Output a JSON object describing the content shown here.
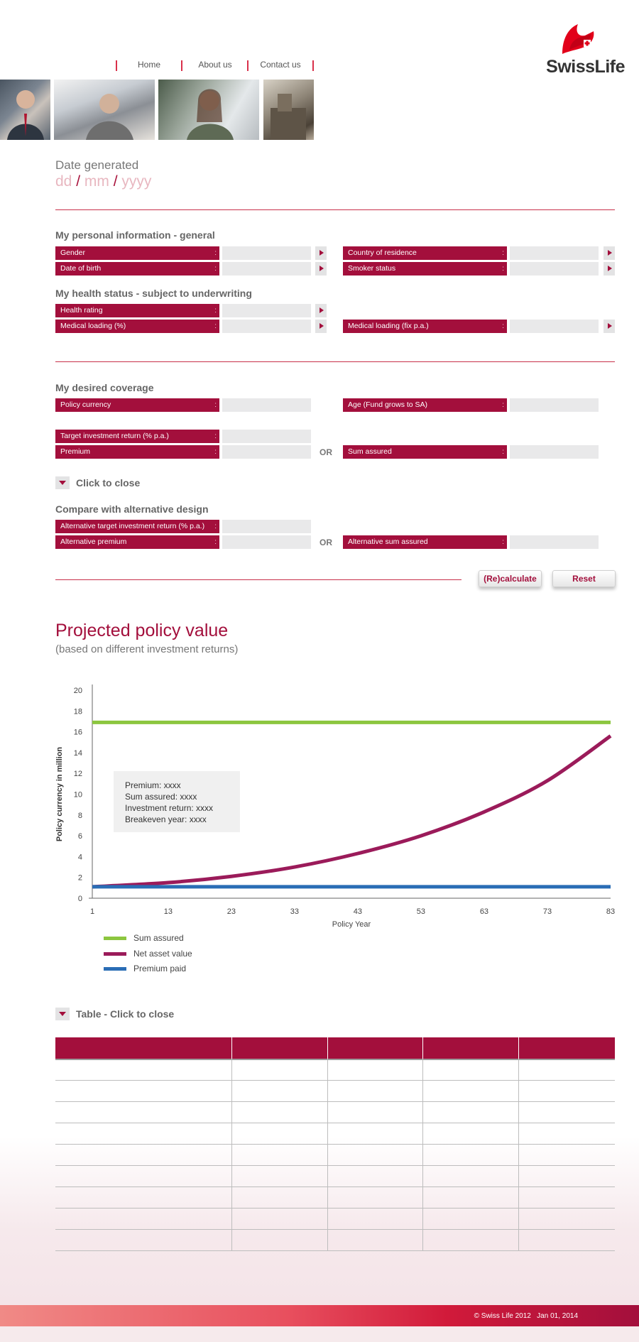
{
  "nav": {
    "items": [
      "Home",
      "About us",
      "Contact us"
    ]
  },
  "brand": {
    "name": "SwissLife",
    "accent_color": "#a30f3c",
    "logo_icon": "swisslife-flag-icon"
  },
  "date_generated": {
    "label": "Date generated",
    "dd": "dd",
    "mm": "mm",
    "yyyy": "yyyy",
    "sep": "/"
  },
  "personal_info": {
    "title": "My personal information - general",
    "gender": "Gender",
    "country": "Country of residence",
    "dob": "Date of birth",
    "smoker": "Smoker status"
  },
  "health": {
    "title": "My health status - subject to underwriting",
    "rating": "Health rating",
    "loading_pct": "Medical loading (%)",
    "loading_fix": "Medical loading (fix p.a.)"
  },
  "coverage": {
    "title": "My desired coverage",
    "currency": "Policy currency",
    "age": "Age (Fund grows to SA)",
    "target_return": "Target investment return (% p.a.)",
    "premium": "Premium",
    "or": "OR",
    "sum_assured": "Sum assured",
    "toggle_label": "Click to close"
  },
  "alternative": {
    "title": "Compare with alternative design",
    "target_return": "Alternative target investment return (% p.a.)",
    "premium": "Alternative premium",
    "or": "OR",
    "sum_assured": "Alternative sum assured"
  },
  "actions": {
    "recalculate": "(Re)calculate",
    "reset": "Reset"
  },
  "projection": {
    "title": "Projected policy value",
    "subtitle": "(based on different investment returns)",
    "info": {
      "premium": "Premium: xxxx",
      "sum_assured": "Sum assured: xxxx",
      "investment_return": "Investment return: xxxx",
      "breakeven": "Breakeven year: xxxx"
    }
  },
  "chart_data": {
    "type": "line",
    "xlabel": "Policy Year",
    "ylabel": "Policy currency in million",
    "x_ticks": [
      1,
      13,
      23,
      33,
      43,
      53,
      63,
      73,
      83
    ],
    "y_ticks": [
      0,
      2,
      4,
      6,
      8,
      10,
      12,
      14,
      16,
      18,
      20
    ],
    "xlim": [
      1,
      83
    ],
    "ylim": [
      0,
      20
    ],
    "grid": false,
    "legend_position": "bottom-left",
    "series": [
      {
        "name": "Sum assured",
        "color": "#8cc63f",
        "x": [
          1,
          83
        ],
        "y": [
          16.9,
          16.9
        ]
      },
      {
        "name": "Net asset value",
        "color": "#9b1b5a",
        "x": [
          1,
          13,
          23,
          33,
          43,
          53,
          63,
          73,
          83
        ],
        "y": [
          1.1,
          1.5,
          2.1,
          3.0,
          4.3,
          6.0,
          8.3,
          11.3,
          15.6
        ]
      },
      {
        "name": "Premium paid",
        "color": "#2a6db5",
        "x": [
          1,
          83
        ],
        "y": [
          1.1,
          1.1
        ]
      }
    ]
  },
  "table": {
    "toggle_label": "Table - Click to close",
    "columns": [
      "",
      "",
      "",
      "",
      ""
    ],
    "rows": [
      [
        "",
        "",
        "",
        "",
        ""
      ],
      [
        "",
        "",
        "",
        "",
        ""
      ],
      [
        "",
        "",
        "",
        "",
        ""
      ],
      [
        "",
        "",
        "",
        "",
        ""
      ],
      [
        "",
        "",
        "",
        "",
        ""
      ],
      [
        "",
        "",
        "",
        "",
        ""
      ],
      [
        "",
        "",
        "",
        "",
        ""
      ],
      [
        "",
        "",
        "",
        "",
        ""
      ],
      [
        "",
        "",
        "",
        "",
        ""
      ]
    ]
  },
  "footer": {
    "copyright": "© Swiss Life 2012",
    "date": "Jan 01, 2014"
  }
}
